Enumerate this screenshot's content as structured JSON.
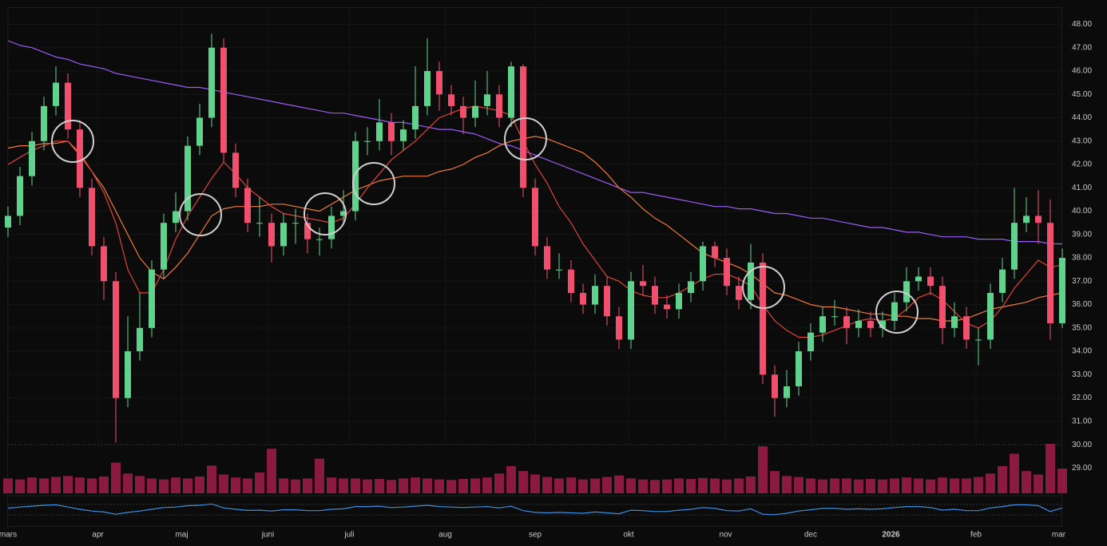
{
  "chart_data": {
    "type": "candlestick",
    "xlim": [
      0,
      88
    ],
    "xticks": [
      {
        "value": 0,
        "label": "mars"
      },
      {
        "value": 7.5,
        "label": "apr"
      },
      {
        "value": 14.5,
        "label": "maj"
      },
      {
        "value": 21.7,
        "label": "juni"
      },
      {
        "value": 28.5,
        "label": "juli"
      },
      {
        "value": 36.5,
        "label": "aug"
      },
      {
        "value": 44,
        "label": "sep"
      },
      {
        "value": 51.8,
        "label": "okt"
      },
      {
        "value": 59.9,
        "label": "nov"
      },
      {
        "value": 67,
        "label": "dec"
      },
      {
        "value": 73.7,
        "label": "2026"
      },
      {
        "value": 80.8,
        "label": "feb"
      },
      {
        "value": 87.7,
        "label": "mar"
      }
    ],
    "ylim": [
      28.5,
      48.7
    ],
    "yticks": [
      {
        "value": 29,
        "label": "29.00"
      },
      {
        "value": 30,
        "label": "30.00"
      },
      {
        "value": 31,
        "label": "31.00"
      },
      {
        "value": 32,
        "label": "32.00"
      },
      {
        "value": 33,
        "label": "33.00"
      },
      {
        "value": 34,
        "label": "34.00"
      },
      {
        "value": 35,
        "label": "35.00"
      },
      {
        "value": 36,
        "label": "36.00"
      },
      {
        "value": 37,
        "label": "37.00"
      },
      {
        "value": 38,
        "label": "38.00"
      },
      {
        "value": 39,
        "label": "39.00"
      },
      {
        "value": 40,
        "label": "40.00"
      },
      {
        "value": 41,
        "label": "41.00"
      },
      {
        "value": 42,
        "label": "42.00"
      },
      {
        "value": 43,
        "label": "43.00"
      },
      {
        "value": 44,
        "label": "44.00"
      },
      {
        "value": 45,
        "label": "45.00"
      },
      {
        "value": 46,
        "label": "46.00"
      },
      {
        "value": 47,
        "label": "47.00"
      },
      {
        "value": 48,
        "label": "48.00"
      }
    ],
    "grid": true,
    "up_color": "#5fd38d",
    "down_color": "#f0506e",
    "open": [
      39.3,
      39.8,
      41.5,
      43,
      44.5,
      45.5,
      43.5,
      41,
      38.5,
      37,
      32,
      34,
      35,
      37.5,
      39.5,
      40,
      42.8,
      44,
      47,
      42.5,
      41,
      39.5,
      39.5,
      38.5,
      39.5,
      39.5,
      38.8,
      38.8,
      39.8,
      40,
      43,
      43,
      43.8,
      43,
      43.5,
      44.5,
      46,
      45,
      44.5,
      44,
      44.5,
      45,
      44,
      46.2,
      41,
      38.5,
      37.5,
      37.5,
      36.5,
      36,
      36.8,
      35.5,
      34.5,
      37,
      36.8,
      36,
      35.8,
      36.5,
      37,
      38.5,
      38,
      36.8,
      36.2,
      37.8,
      33,
      32,
      32.5,
      34,
      34.8,
      35.5,
      35.5,
      35,
      35.3,
      35,
      35.3,
      36.1,
      37,
      37.2,
      36.8,
      35,
      35.5,
      34.5,
      34.5,
      36.5,
      37.5,
      39.5,
      39.8,
      39.5,
      35.2
    ],
    "high": [
      40.2,
      41.9,
      43.4,
      44.9,
      46.2,
      45.9,
      43.9,
      41.4,
      38.9,
      37.4,
      35.5,
      36.5,
      37.9,
      39.9,
      40.8,
      43.2,
      44.6,
      47.6,
      47.4,
      42.9,
      41.4,
      40.6,
      39.9,
      39.9,
      40.1,
      39.9,
      39.3,
      40.2,
      40.9,
      43.4,
      43.6,
      44.8,
      44.2,
      43.9,
      46.2,
      47.4,
      46.4,
      45.4,
      44.9,
      45.6,
      46,
      45.4,
      46.4,
      46.3,
      41.4,
      38.9,
      38.2,
      37.9,
      36.9,
      37.3,
      37.2,
      35.9,
      37.4,
      37.7,
      37.2,
      36.4,
      36.9,
      37.4,
      38.7,
      38.7,
      38.4,
      37.2,
      38.6,
      38.2,
      33.4,
      33.2,
      34.4,
      35.2,
      35.9,
      36.2,
      35.9,
      35.8,
      35.7,
      35.7,
      36.5,
      37.6,
      37.6,
      37.6,
      37.2,
      36.1,
      35.9,
      35,
      36.9,
      38,
      41,
      40.6,
      40.9,
      40.5,
      38.4
    ],
    "low": [
      38.9,
      39.4,
      41.1,
      42.6,
      44.1,
      43.1,
      40.6,
      38.1,
      36.2,
      30.1,
      31.6,
      33.6,
      34.6,
      37.1,
      39.1,
      39.6,
      42.4,
      43.6,
      42.1,
      40.6,
      39.1,
      38.9,
      37.8,
      38.1,
      38.6,
      38.2,
      38.1,
      38.4,
      39.4,
      39.6,
      42.4,
      42.6,
      42.4,
      42.6,
      43.1,
      44.1,
      44.3,
      44.1,
      43.3,
      43.6,
      44.1,
      43.6,
      43.6,
      40.6,
      38.1,
      37.1,
      37.1,
      36.1,
      35.6,
      35.6,
      35.1,
      34.1,
      34.1,
      36.4,
      35.6,
      35.4,
      35.4,
      36.1,
      36.6,
      37.6,
      36.4,
      35.8,
      35.8,
      32.6,
      31.2,
      31.6,
      32.1,
      33.6,
      34.4,
      35.1,
      34.3,
      34.6,
      34.6,
      34.6,
      34.9,
      35.7,
      36.6,
      36.4,
      34.3,
      34.6,
      34.1,
      33.4,
      34.1,
      36.1,
      37.1,
      39.1,
      38.6,
      34.5,
      35
    ],
    "close": [
      39.8,
      41.5,
      43,
      44.5,
      45.5,
      43.5,
      41,
      38.5,
      37,
      32,
      34,
      35,
      37.5,
      39.5,
      40,
      42.8,
      44,
      47,
      42.5,
      41,
      39.5,
      39.5,
      38.5,
      39.5,
      39.5,
      38.8,
      38.8,
      39.8,
      40,
      43,
      43,
      43.8,
      43,
      43.5,
      44.5,
      46,
      45,
      44.5,
      44,
      44.5,
      45,
      44,
      46.2,
      41,
      38.5,
      37.5,
      37.5,
      36.5,
      36,
      36.8,
      35.5,
      34.5,
      37,
      36.8,
      36,
      35.8,
      36.5,
      37,
      38.5,
      38,
      36.8,
      36.2,
      37.8,
      33,
      32,
      32.5,
      34,
      34.8,
      35.5,
      35.5,
      35,
      35.3,
      35,
      35.3,
      36.1,
      37,
      37.2,
      36.8,
      35,
      35.5,
      34.5,
      34.5,
      36.5,
      37.5,
      39.5,
      39.8,
      39.5,
      35.2,
      38
    ],
    "lines": [
      {
        "color": "#9b5cf6",
        "values": [
          47.3,
          47.1,
          47.0,
          46.8,
          46.6,
          46.5,
          46.3,
          46.2,
          46.1,
          45.9,
          45.8,
          45.7,
          45.6,
          45.5,
          45.4,
          45.3,
          45.3,
          45.2,
          45.1,
          45.0,
          44.9,
          44.8,
          44.7,
          44.6,
          44.5,
          44.4,
          44.3,
          44.2,
          44.2,
          44.1,
          44.0,
          43.9,
          43.8,
          43.8,
          43.7,
          43.6,
          43.5,
          43.5,
          43.4,
          43.3,
          43.1,
          42.9,
          42.8,
          42.6,
          42.4,
          42.2,
          42.0,
          41.8,
          41.6,
          41.4,
          41.2,
          41.0,
          40.8,
          40.8,
          40.7,
          40.6,
          40.5,
          40.4,
          40.3,
          40.2,
          40.2,
          40.1,
          40.1,
          40.0,
          39.9,
          39.9,
          39.8,
          39.7,
          39.7,
          39.6,
          39.5,
          39.4,
          39.3,
          39.3,
          39.2,
          39.1,
          39.1,
          39.0,
          38.9,
          38.9,
          38.9,
          38.8,
          38.8,
          38.8,
          38.7,
          38.7,
          38.7,
          38.6,
          38.6
        ]
      },
      {
        "color": "#f07a3a",
        "values": [
          42.7,
          42.8,
          42.8,
          42.9,
          42.9,
          43.0,
          42.4,
          41.7,
          41.0,
          40.0,
          39.0,
          38.0,
          37.4,
          37.1,
          37.6,
          38.2,
          39.0,
          39.8,
          40.1,
          40.2,
          40.2,
          40.2,
          40.3,
          40.3,
          40.2,
          40.1,
          40.0,
          40.3,
          40.6,
          40.9,
          41.1,
          41.3,
          41.4,
          41.5,
          41.5,
          41.5,
          41.7,
          41.8,
          42.0,
          42.3,
          42.5,
          42.8,
          43.0,
          43.1,
          43.2,
          43.1,
          42.9,
          42.7,
          42.5,
          42.1,
          41.6,
          41.0,
          40.6,
          40.1,
          39.7,
          39.4,
          39.0,
          38.6,
          38.2,
          38.0,
          37.8,
          37.6,
          37.3,
          36.9,
          36.5,
          36.4,
          36.2,
          36.0,
          35.9,
          35.9,
          35.8,
          35.7,
          35.6,
          35.6,
          35.5,
          35.5,
          35.4,
          35.4,
          35.3,
          35.3,
          35.4,
          35.6,
          35.8,
          35.9,
          36.0,
          36.1,
          36.3,
          36.4,
          36.5
        ]
      },
      {
        "color": "#e0443a",
        "values": [
          42.0,
          42.3,
          42.6,
          42.8,
          43.0,
          43.0,
          42.5,
          41.7,
          40.8,
          39.5,
          37.5,
          36.5,
          36.5,
          37.5,
          38.8,
          39.8,
          40.6,
          41.4,
          42.1,
          41.6,
          41.0,
          40.6,
          40.2,
          39.9,
          39.8,
          39.7,
          39.6,
          39.5,
          39.7,
          40.3,
          41.0,
          41.6,
          42.2,
          42.6,
          43.0,
          43.5,
          44.0,
          44.2,
          44.4,
          44.5,
          44.4,
          44.3,
          44.1,
          43.0,
          42.0,
          41.2,
          40.2,
          39.5,
          38.6,
          37.9,
          37.2,
          37.0,
          36.6,
          36.4,
          36.3,
          36.3,
          36.5,
          36.8,
          37.1,
          37.3,
          37.3,
          37.1,
          36.8,
          36.0,
          35.3,
          34.9,
          34.6,
          34.6,
          34.7,
          34.9,
          35.1,
          35.3,
          35.4,
          35.3,
          35.4,
          35.8,
          36.3,
          36.5,
          36.2,
          35.7,
          35.2,
          35.0,
          35.3,
          35.9,
          36.7,
          37.3,
          37.9,
          37.6,
          37.7
        ]
      }
    ],
    "volume": {
      "color": "#8a1a40",
      "ylim": [
        0,
        100
      ],
      "values": [
        30,
        28,
        32,
        30,
        33,
        35,
        32,
        30,
        34,
        62,
        40,
        35,
        30,
        28,
        32,
        30,
        34,
        56,
        38,
        32,
        30,
        42,
        90,
        30,
        28,
        30,
        70,
        32,
        30,
        30,
        28,
        29,
        27,
        30,
        32,
        30,
        28,
        27,
        29,
        30,
        32,
        40,
        55,
        45,
        38,
        33,
        30,
        32,
        28,
        30,
        33,
        36,
        30,
        28,
        27,
        28,
        30,
        29,
        31,
        30,
        28,
        30,
        34,
        95,
        45,
        35,
        33,
        30,
        28,
        30,
        30,
        28,
        29,
        28,
        30,
        32,
        30,
        28,
        32,
        30,
        30,
        33,
        40,
        55,
        80,
        45,
        38,
        100,
        50
      ]
    },
    "rsi": {
      "color": "#3b8fe0",
      "ylim": [
        0,
        100
      ],
      "values": [
        55,
        60,
        64,
        68,
        70,
        60,
        50,
        42,
        38,
        28,
        36,
        42,
        50,
        58,
        60,
        66,
        68,
        74,
        56,
        50,
        45,
        46,
        42,
        48,
        48,
        44,
        44,
        50,
        52,
        62,
        62,
        64,
        58,
        60,
        64,
        68,
        62,
        60,
        58,
        60,
        62,
        56,
        64,
        44,
        36,
        34,
        36,
        34,
        32,
        38,
        34,
        30,
        46,
        44,
        40,
        40,
        46,
        50,
        58,
        54,
        44,
        42,
        52,
        28,
        26,
        32,
        42,
        48,
        54,
        54,
        50,
        52,
        50,
        52,
        58,
        62,
        62,
        58,
        46,
        50,
        44,
        44,
        56,
        62,
        70,
        70,
        66,
        40,
        56
      ]
    }
  }
}
